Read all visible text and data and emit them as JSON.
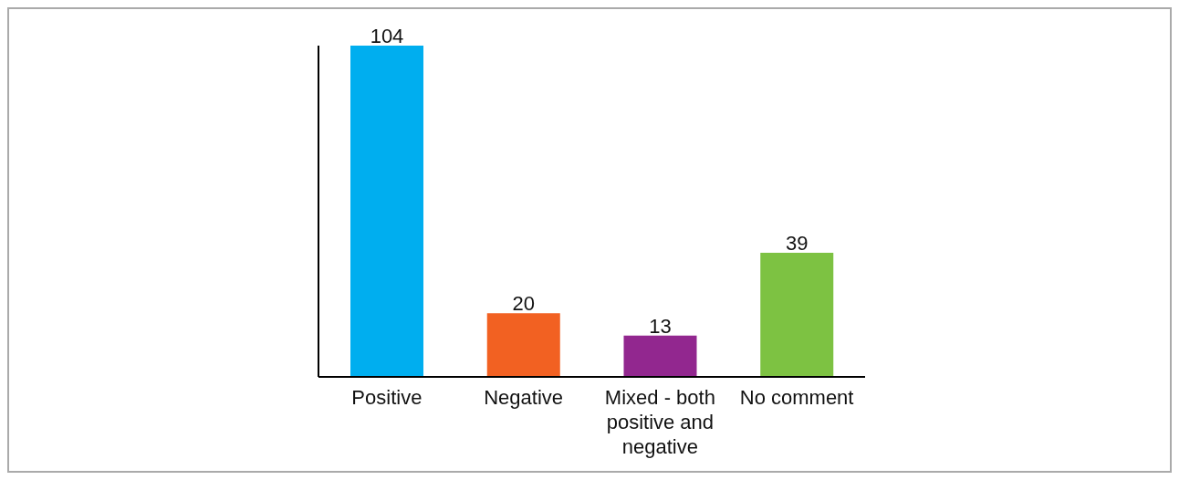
{
  "chart_data": {
    "type": "bar",
    "categories": [
      "Positive",
      "Negative",
      "Mixed - both positive and negative",
      "No comment"
    ],
    "values": [
      104,
      20,
      13,
      39
    ],
    "colors": [
      "#00aeef",
      "#f26122",
      "#92278f",
      "#7dc242"
    ],
    "data_labels": true,
    "tick_labels": "x"
  }
}
